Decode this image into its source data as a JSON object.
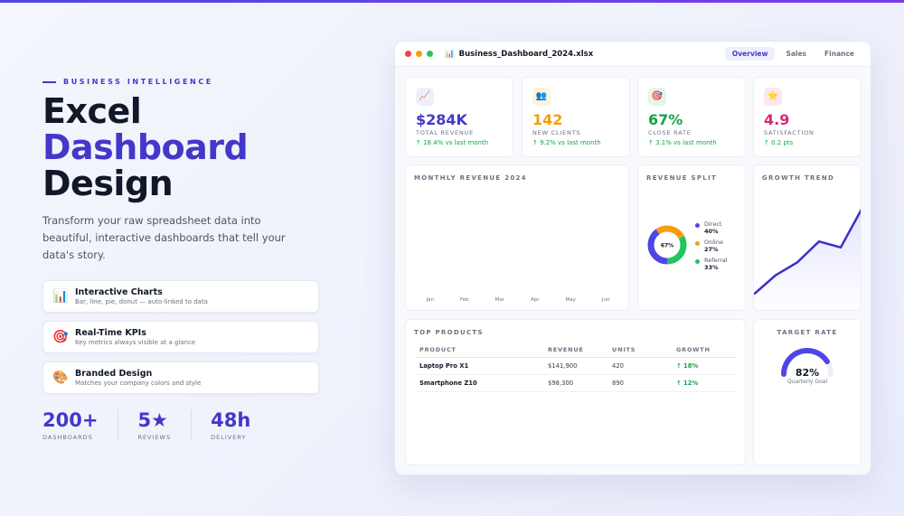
{
  "hero": {
    "eyebrow": "BUSINESS INTELLIGENCE",
    "title_line1": "Excel",
    "title_line2": "Dashboard",
    "title_line3": "Design",
    "description": "Transform your raw spreadsheet data into beautiful, interactive dashboards that tell your data's story.",
    "features": [
      {
        "icon": "chart-icon",
        "glyph": "📊",
        "title": "Interactive Charts",
        "subtitle": "Bar, line, pie, donut — auto-linked to data"
      },
      {
        "icon": "target-icon",
        "glyph": "🎯",
        "title": "Real-Time KPIs",
        "subtitle": "Key metrics always visible at a glance"
      },
      {
        "icon": "palette-icon",
        "glyph": "🎨",
        "title": "Branded Design",
        "subtitle": "Matches your company colors and style"
      }
    ],
    "stats": [
      {
        "value": "200+",
        "label": "DASHBOARDS"
      },
      {
        "value": "5★",
        "label": "REVIEWS"
      },
      {
        "value": "48h",
        "label": "DELIVERY"
      }
    ]
  },
  "window": {
    "file_name": "Business_Dashboard_2024.xlsx",
    "file_icon": "📊",
    "tabs": [
      "Overview",
      "Sales",
      "Finance"
    ],
    "active_tab": "Overview",
    "kpis": [
      {
        "icon": "trend-icon",
        "glyph": "📈",
        "value": "$284K",
        "label": "TOTAL REVENUE",
        "change": "↑ 18.4% vs last month",
        "color": "#4338ca",
        "bg": "#efeefe"
      },
      {
        "icon": "users-icon",
        "glyph": "👥",
        "value": "142",
        "label": "NEW CLIENTS",
        "change": "↑ 9.2% vs last month",
        "color": "#f59e0b",
        "bg": "#fdf3dc"
      },
      {
        "icon": "target-icon",
        "glyph": "🎯",
        "value": "67%",
        "label": "CLOSE RATE",
        "change": "↑ 3.1% vs last month",
        "color": "#16a34a",
        "bg": "#e3f6ea"
      },
      {
        "icon": "star-icon",
        "glyph": "⭐",
        "value": "4.9",
        "label": "SATISFACTION",
        "change": "↑ 0.2 pts",
        "color": "#db2777",
        "bg": "#fce7f1"
      }
    ],
    "monthly_revenue": {
      "title": "MONTHLY REVENUE 2024",
      "months": [
        "Jan",
        "Feb",
        "Mar",
        "Apr",
        "May",
        "Jun"
      ]
    },
    "revenue_split": {
      "title": "REVENUE SPLIT",
      "center_label": "67%",
      "segments": [
        {
          "name": "Direct",
          "pct_label": "40%",
          "value": 40,
          "color": "#4f46e5"
        },
        {
          "name": "Online",
          "pct_label": "27%",
          "value": 27,
          "color": "#f59e0b"
        },
        {
          "name": "Referral",
          "pct_label": "33%",
          "value": 33,
          "color": "#22c55e"
        }
      ]
    },
    "growth_trend": {
      "title": "GROWTH TREND",
      "values": [
        5,
        24,
        37,
        58,
        52,
        92
      ]
    },
    "top_products": {
      "title": "TOP PRODUCTS",
      "columns": [
        "PRODUCT",
        "REVENUE",
        "UNITS",
        "GROWTH"
      ],
      "rows": [
        [
          "Laptop Pro X1",
          "$141,900",
          "420",
          "↑ 18%"
        ],
        [
          "Smartphone Z10",
          "$98,300",
          "890",
          "↑ 12%"
        ]
      ]
    },
    "target_rate": {
      "title": "TARGET RATE",
      "value_label": "82%",
      "value": 0.82,
      "subtitle": "Quarterly Goal"
    }
  }
}
